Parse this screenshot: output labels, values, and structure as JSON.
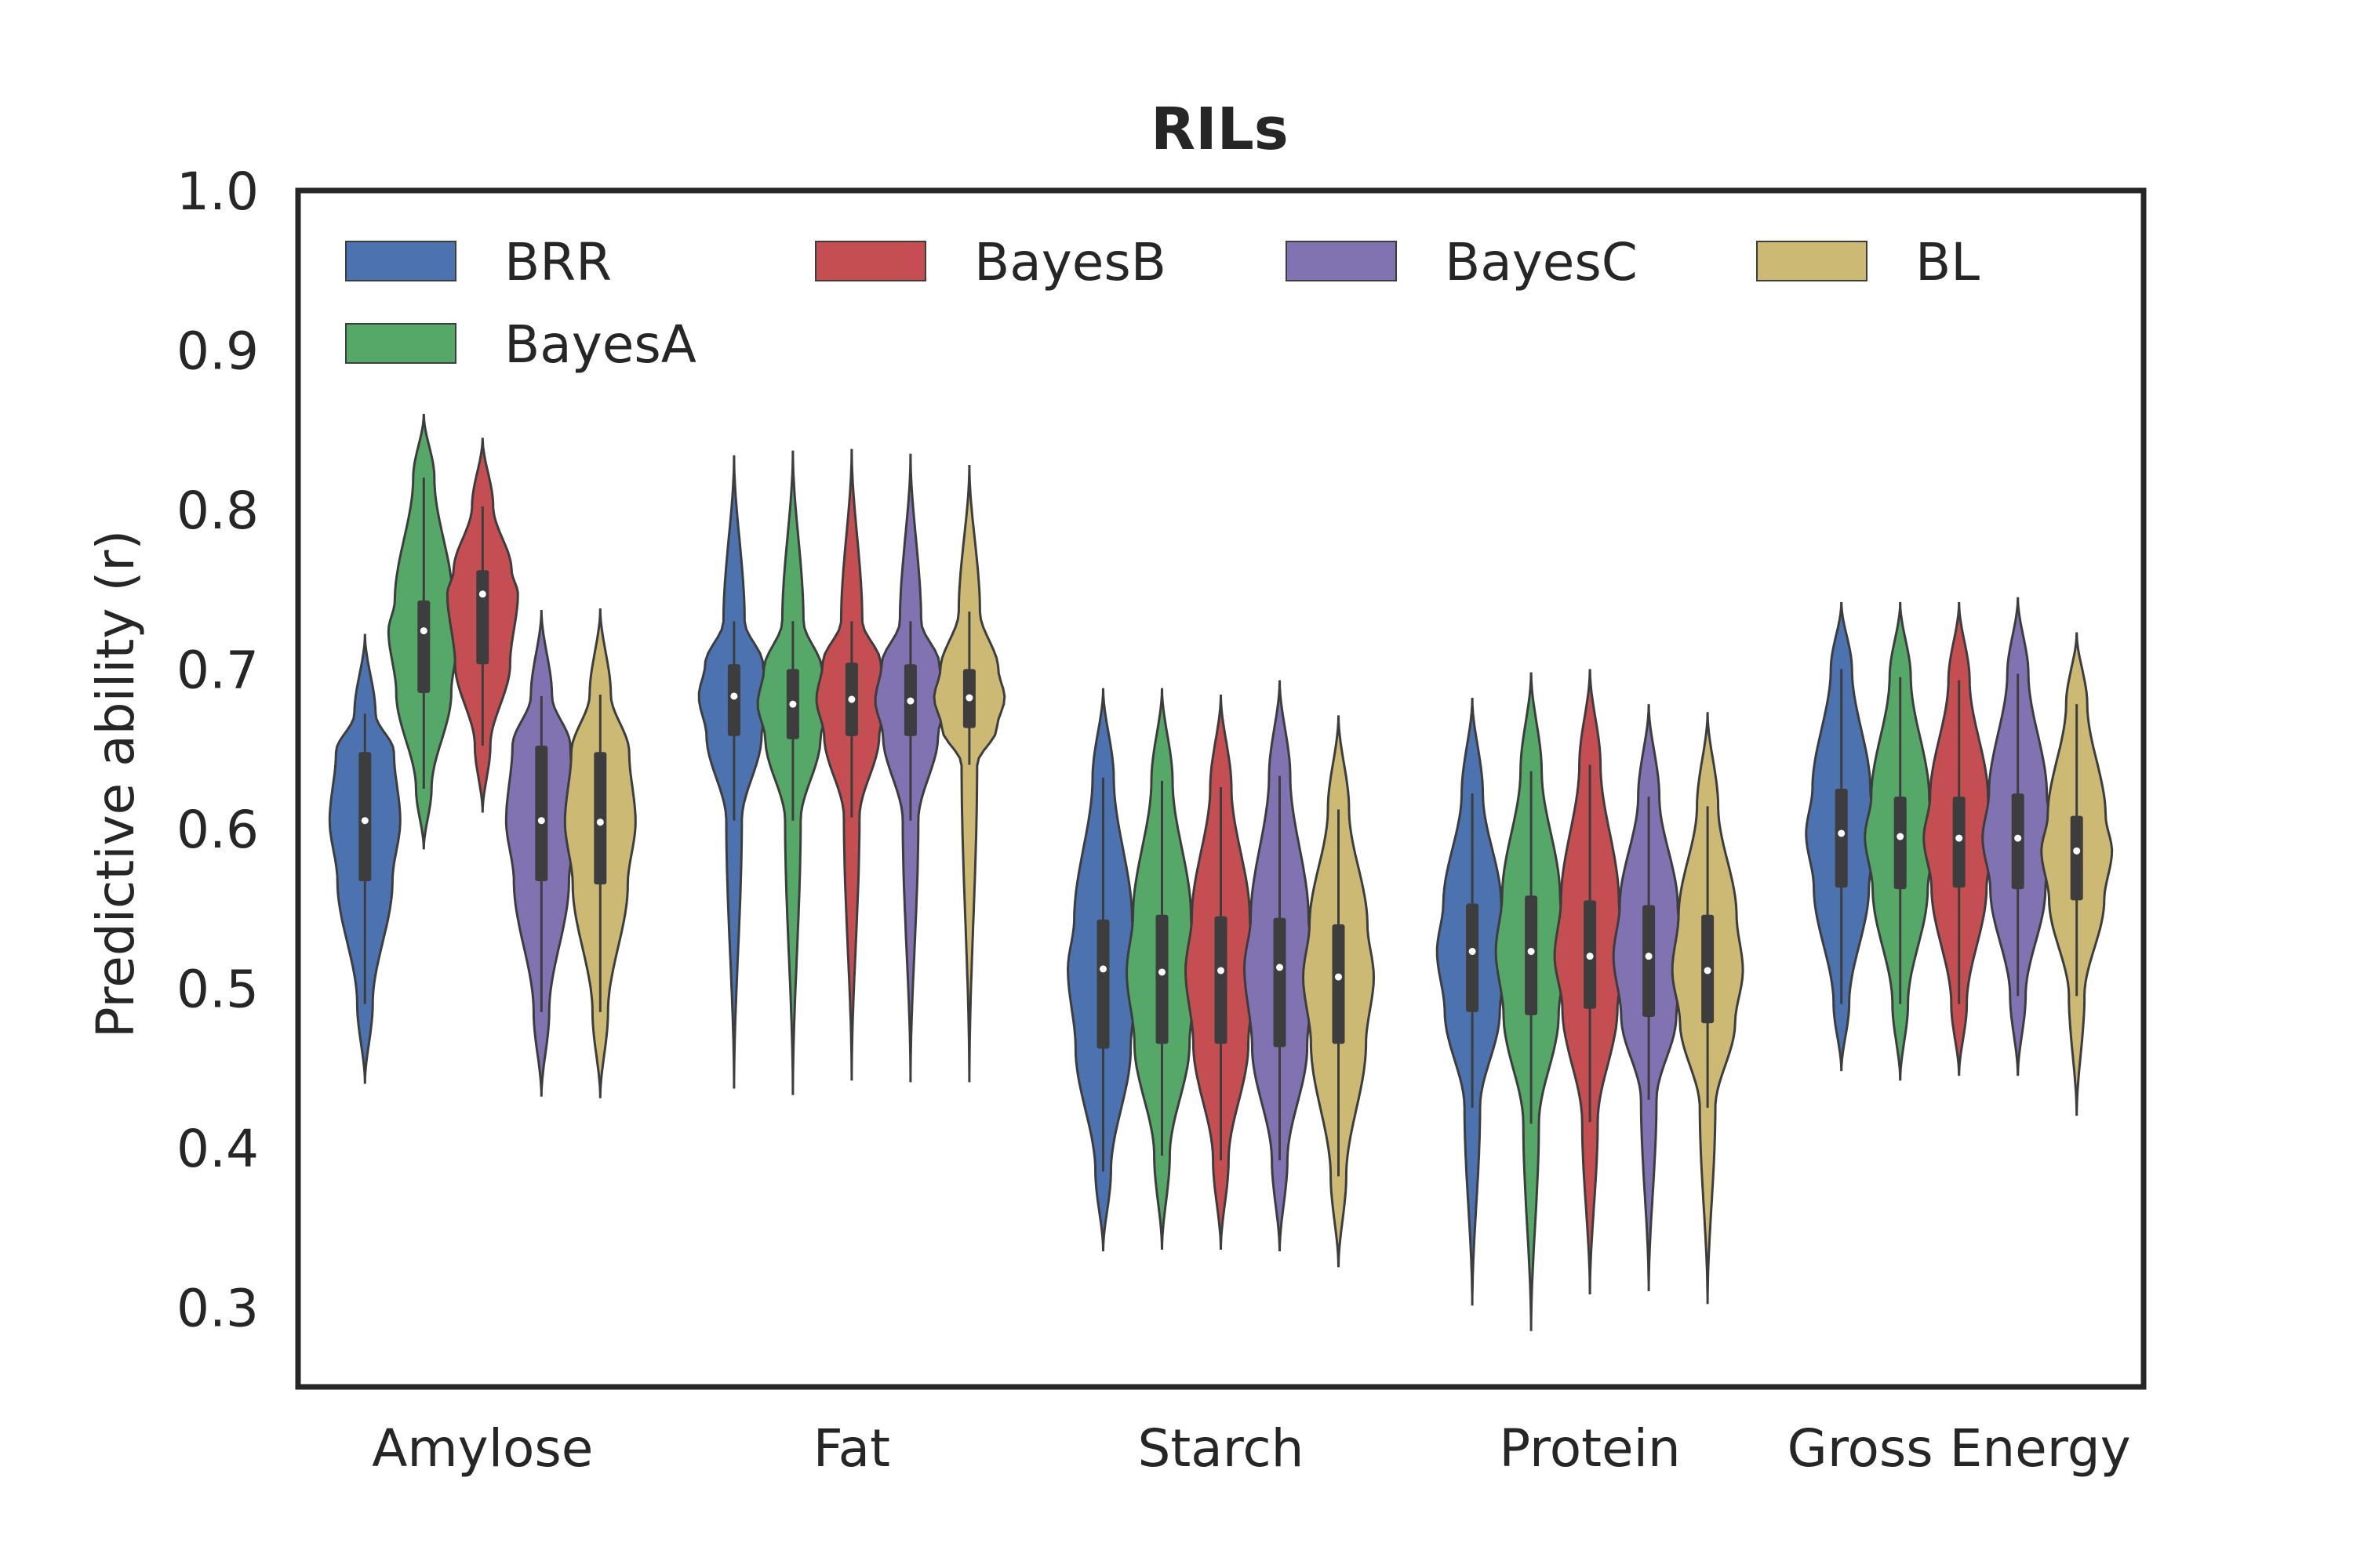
{
  "chart_data": {
    "type": "violin",
    "title": "RILs",
    "xlabel": "",
    "ylabel": "Predictive ability (r)",
    "ylim": [
      0.25,
      1.0
    ],
    "yticks": [
      "1.0",
      "0.9",
      "0.8",
      "0.7",
      "0.6",
      "0.5",
      "0.4",
      "0.3"
    ],
    "ytick_values": [
      1.0,
      0.9,
      0.8,
      0.7,
      0.6,
      0.5,
      0.4,
      0.3
    ],
    "categories": [
      "Amylose",
      "Fat",
      "Starch",
      "Protein",
      "Gross Energy"
    ],
    "grid": false,
    "legend": {
      "placement": "top-left",
      "columns": 4
    },
    "series": [
      {
        "name": "BRR",
        "color": "#4c72b0",
        "stats": [
          {
            "min": 0.44,
            "q1": 0.567,
            "median": 0.605,
            "q3": 0.648,
            "max": 0.722,
            "whisker_low": 0.49,
            "whisker_high": 0.672
          },
          {
            "min": 0.437,
            "q1": 0.658,
            "median": 0.683,
            "q3": 0.703,
            "max": 0.834,
            "whisker_low": 0.605,
            "whisker_high": 0.73
          },
          {
            "min": 0.335,
            "q1": 0.462,
            "median": 0.512,
            "q3": 0.543,
            "max": 0.688,
            "whisker_low": 0.385,
            "whisker_high": 0.632
          },
          {
            "min": 0.301,
            "q1": 0.485,
            "median": 0.523,
            "q3": 0.553,
            "max": 0.682,
            "whisker_low": 0.425,
            "whisker_high": 0.622
          },
          {
            "min": 0.448,
            "q1": 0.563,
            "median": 0.597,
            "q3": 0.625,
            "max": 0.742,
            "whisker_low": 0.49,
            "whisker_high": 0.7
          }
        ]
      },
      {
        "name": "BayesA",
        "color": "#55a868",
        "stats": [
          {
            "min": 0.587,
            "q1": 0.685,
            "median": 0.724,
            "q3": 0.743,
            "max": 0.86,
            "whisker_low": 0.625,
            "whisker_high": 0.82
          },
          {
            "min": 0.433,
            "q1": 0.656,
            "median": 0.678,
            "q3": 0.7,
            "max": 0.837,
            "whisker_low": 0.605,
            "whisker_high": 0.73
          },
          {
            "min": 0.336,
            "q1": 0.465,
            "median": 0.51,
            "q3": 0.546,
            "max": 0.688,
            "whisker_low": 0.395,
            "whisker_high": 0.63
          },
          {
            "min": 0.285,
            "q1": 0.483,
            "median": 0.523,
            "q3": 0.558,
            "max": 0.698,
            "whisker_low": 0.415,
            "whisker_high": 0.636
          },
          {
            "min": 0.442,
            "q1": 0.562,
            "median": 0.595,
            "q3": 0.62,
            "max": 0.742,
            "whisker_low": 0.49,
            "whisker_high": 0.695
          }
        ]
      },
      {
        "name": "BayesB",
        "color": "#c44e52",
        "stats": [
          {
            "min": 0.61,
            "q1": 0.703,
            "median": 0.747,
            "q3": 0.762,
            "max": 0.845,
            "whisker_low": 0.652,
            "whisker_high": 0.802
          },
          {
            "min": 0.442,
            "q1": 0.658,
            "median": 0.681,
            "q3": 0.704,
            "max": 0.838,
            "whisker_low": 0.607,
            "whisker_high": 0.73
          },
          {
            "min": 0.336,
            "q1": 0.465,
            "median": 0.511,
            "q3": 0.545,
            "max": 0.684,
            "whisker_low": 0.392,
            "whisker_high": 0.626
          },
          {
            "min": 0.308,
            "q1": 0.487,
            "median": 0.52,
            "q3": 0.555,
            "max": 0.7,
            "whisker_low": 0.416,
            "whisker_high": 0.64
          },
          {
            "min": 0.445,
            "q1": 0.563,
            "median": 0.594,
            "q3": 0.62,
            "max": 0.742,
            "whisker_low": 0.49,
            "whisker_high": 0.693
          }
        ]
      },
      {
        "name": "BayesC",
        "color": "#8172b2",
        "stats": [
          {
            "min": 0.432,
            "q1": 0.567,
            "median": 0.605,
            "q3": 0.652,
            "max": 0.737,
            "whisker_low": 0.485,
            "whisker_high": 0.683
          },
          {
            "min": 0.441,
            "q1": 0.658,
            "median": 0.68,
            "q3": 0.703,
            "max": 0.835,
            "whisker_low": 0.605,
            "whisker_high": 0.73
          },
          {
            "min": 0.335,
            "q1": 0.463,
            "median": 0.513,
            "q3": 0.544,
            "max": 0.693,
            "whisker_low": 0.392,
            "whisker_high": 0.633
          },
          {
            "min": 0.31,
            "q1": 0.482,
            "median": 0.52,
            "q3": 0.552,
            "max": 0.678,
            "whisker_low": 0.43,
            "whisker_high": 0.62
          },
          {
            "min": 0.445,
            "q1": 0.562,
            "median": 0.594,
            "q3": 0.622,
            "max": 0.745,
            "whisker_low": 0.495,
            "whisker_high": 0.697
          }
        ]
      },
      {
        "name": "BL",
        "color": "#ccb974",
        "stats": [
          {
            "min": 0.431,
            "q1": 0.565,
            "median": 0.604,
            "q3": 0.648,
            "max": 0.738,
            "whisker_low": 0.485,
            "whisker_high": 0.684
          },
          {
            "min": 0.441,
            "q1": 0.663,
            "median": 0.682,
            "q3": 0.7,
            "max": 0.828,
            "whisker_low": 0.64,
            "whisker_high": 0.736
          },
          {
            "min": 0.325,
            "q1": 0.465,
            "median": 0.507,
            "q3": 0.54,
            "max": 0.671,
            "whisker_low": 0.382,
            "whisker_high": 0.612
          },
          {
            "min": 0.302,
            "q1": 0.478,
            "median": 0.511,
            "q3": 0.546,
            "max": 0.673,
            "whisker_low": 0.425,
            "whisker_high": 0.614
          },
          {
            "min": 0.42,
            "q1": 0.555,
            "median": 0.586,
            "q3": 0.608,
            "max": 0.723,
            "whisker_low": 0.495,
            "whisker_high": 0.678
          }
        ]
      }
    ]
  }
}
